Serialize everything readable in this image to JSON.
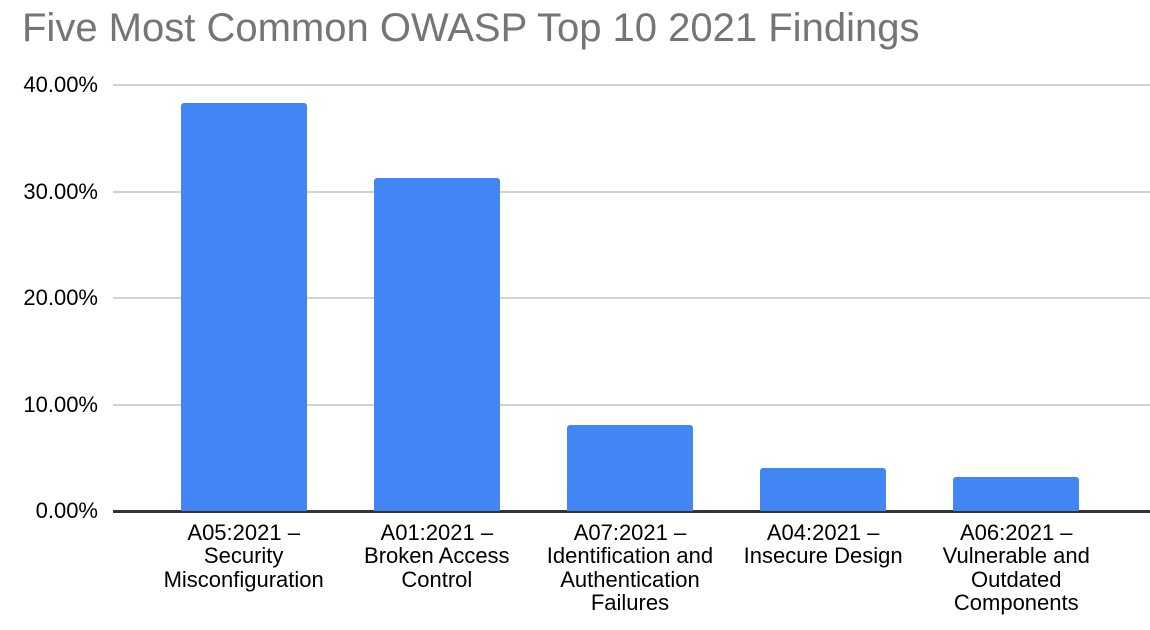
{
  "title": "Five Most Common OWASP Top 10 2021 Findings",
  "colors": {
    "bar": "#4285F4",
    "title_text": "#757575",
    "gridline": "#D2D2D2",
    "baseline": "#333333",
    "axis_text": "#000000",
    "background": "#FFFFFF"
  },
  "chart_data": {
    "type": "bar",
    "title": "Five Most Common OWASP Top 10 2021 Findings",
    "categories": [
      "A05:2021 – Security Misconfiguration",
      "A01:2021 – Broken Access Control",
      "A07:2021 – Identification and Authentication Failures",
      "A04:2021 – Insecure Design",
      "A06:2021 – Vulnerable and Outdated Components"
    ],
    "label_lines": [
      [
        "A05:2021 –",
        "Security",
        "Misconfiguration"
      ],
      [
        "A01:2021 –",
        "Broken Access",
        "Control"
      ],
      [
        "A07:2021 –",
        "Identification and",
        "Authentication",
        "Failures"
      ],
      [
        "A04:2021 –",
        "Insecure Design"
      ],
      [
        "A06:2021 –",
        "Vulnerable and",
        "Outdated",
        "Components"
      ]
    ],
    "values": [
      38.3,
      31.3,
      8.1,
      4.0,
      3.2
    ],
    "unit": "%",
    "xlabel": "",
    "ylabel": "",
    "ylim": [
      0,
      40
    ],
    "yticks": [
      {
        "value": 0,
        "label": "0.00%"
      },
      {
        "value": 10,
        "label": "10.00%"
      },
      {
        "value": 20,
        "label": "20.00%"
      },
      {
        "value": 30,
        "label": "30.00%"
      },
      {
        "value": 40,
        "label": "40.00%"
      }
    ],
    "grid": true,
    "legend_position": "none"
  }
}
